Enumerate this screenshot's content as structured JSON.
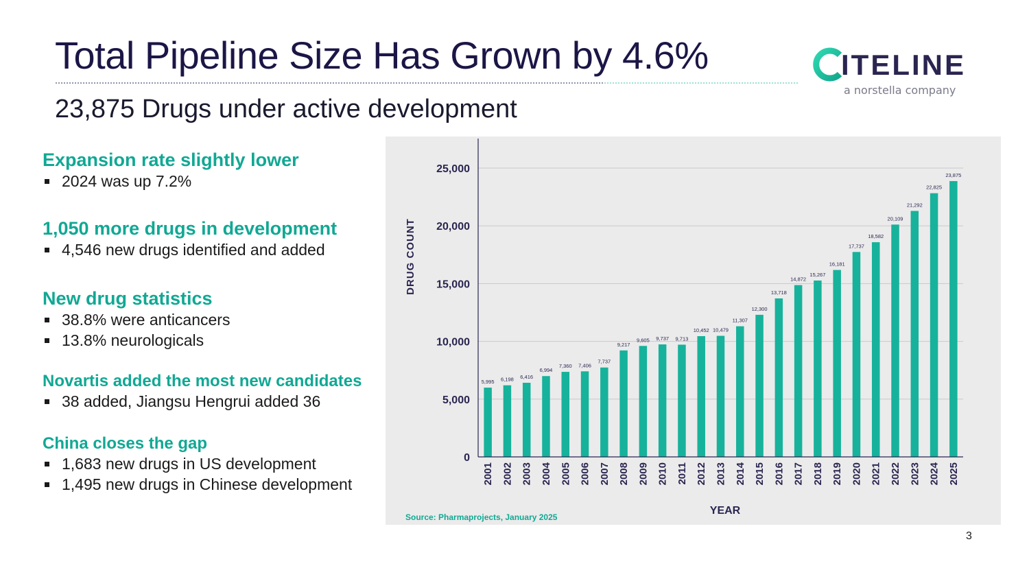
{
  "slide": {
    "title": "Total Pipeline Size Has Grown by 4.6%",
    "subtitle": "23,875 Drugs under active development",
    "page_number": "3"
  },
  "logo": {
    "name": "CITELINE",
    "name_rest": "ITELINE",
    "tagline": "a norstella company"
  },
  "sections": [
    {
      "heading": "Expansion rate slightly lower",
      "items": [
        "2024 was up 7.2%"
      ]
    },
    {
      "heading": "1,050 more drugs in development",
      "items": [
        "4,546 new drugs identified and added"
      ]
    },
    {
      "heading": "New drug statistics",
      "items": [
        "38.8% were anticancers",
        "13.8% neurologicals"
      ]
    },
    {
      "heading": "Novartis added the most new candidates",
      "items": [
        "38 added, Jiangsu Hengrui added 36"
      ]
    },
    {
      "heading": "China closes the gap",
      "items": [
        "1,683 new drugs in US development",
        "1,495 new drugs in Chinese development"
      ]
    }
  ],
  "colors": {
    "accent": "#11a894",
    "bar": "#17b29b",
    "title": "#1b1646",
    "panel": "#ebebeb"
  },
  "chart_data": {
    "type": "bar",
    "title": "",
    "xlabel": "YEAR",
    "ylabel": "DRUG COUNT",
    "ylim": [
      0,
      27500
    ],
    "yticks": [
      0,
      5000,
      10000,
      15000,
      20000,
      25000
    ],
    "ytick_labels": [
      "0",
      "5,000",
      "10,000",
      "15,000",
      "20,000",
      "25,000"
    ],
    "categories": [
      "2001",
      "2002",
      "2003",
      "2004",
      "2005",
      "2006",
      "2007",
      "2008",
      "2009",
      "2010",
      "2011",
      "2012",
      "2013",
      "2014",
      "2015",
      "2016",
      "2017",
      "2018",
      "2019",
      "2020",
      "2021",
      "2022",
      "2023",
      "2024",
      "2025"
    ],
    "values": [
      5995,
      6198,
      6416,
      6994,
      7360,
      7406,
      7737,
      9217,
      9605,
      9737,
      9713,
      10452,
      10479,
      11307,
      12300,
      13718,
      14872,
      15267,
      16181,
      17737,
      18582,
      20109,
      21292,
      22825,
      23875
    ],
    "data_labels": [
      "5,995",
      "6,198",
      "6,416",
      "6,994",
      "7,360",
      "7,406",
      "7,737",
      "9,217",
      "9,605",
      "9,737",
      "9,713",
      "10,452",
      "10,479",
      "11,307",
      "12,300",
      "13,718",
      "14,872",
      "15,267",
      "16,181",
      "17,737",
      "18,582",
      "20,109",
      "21,292",
      "22,825",
      "23,875"
    ],
    "source": "Source: Pharmaprojects, January 2025",
    "grid": true
  }
}
